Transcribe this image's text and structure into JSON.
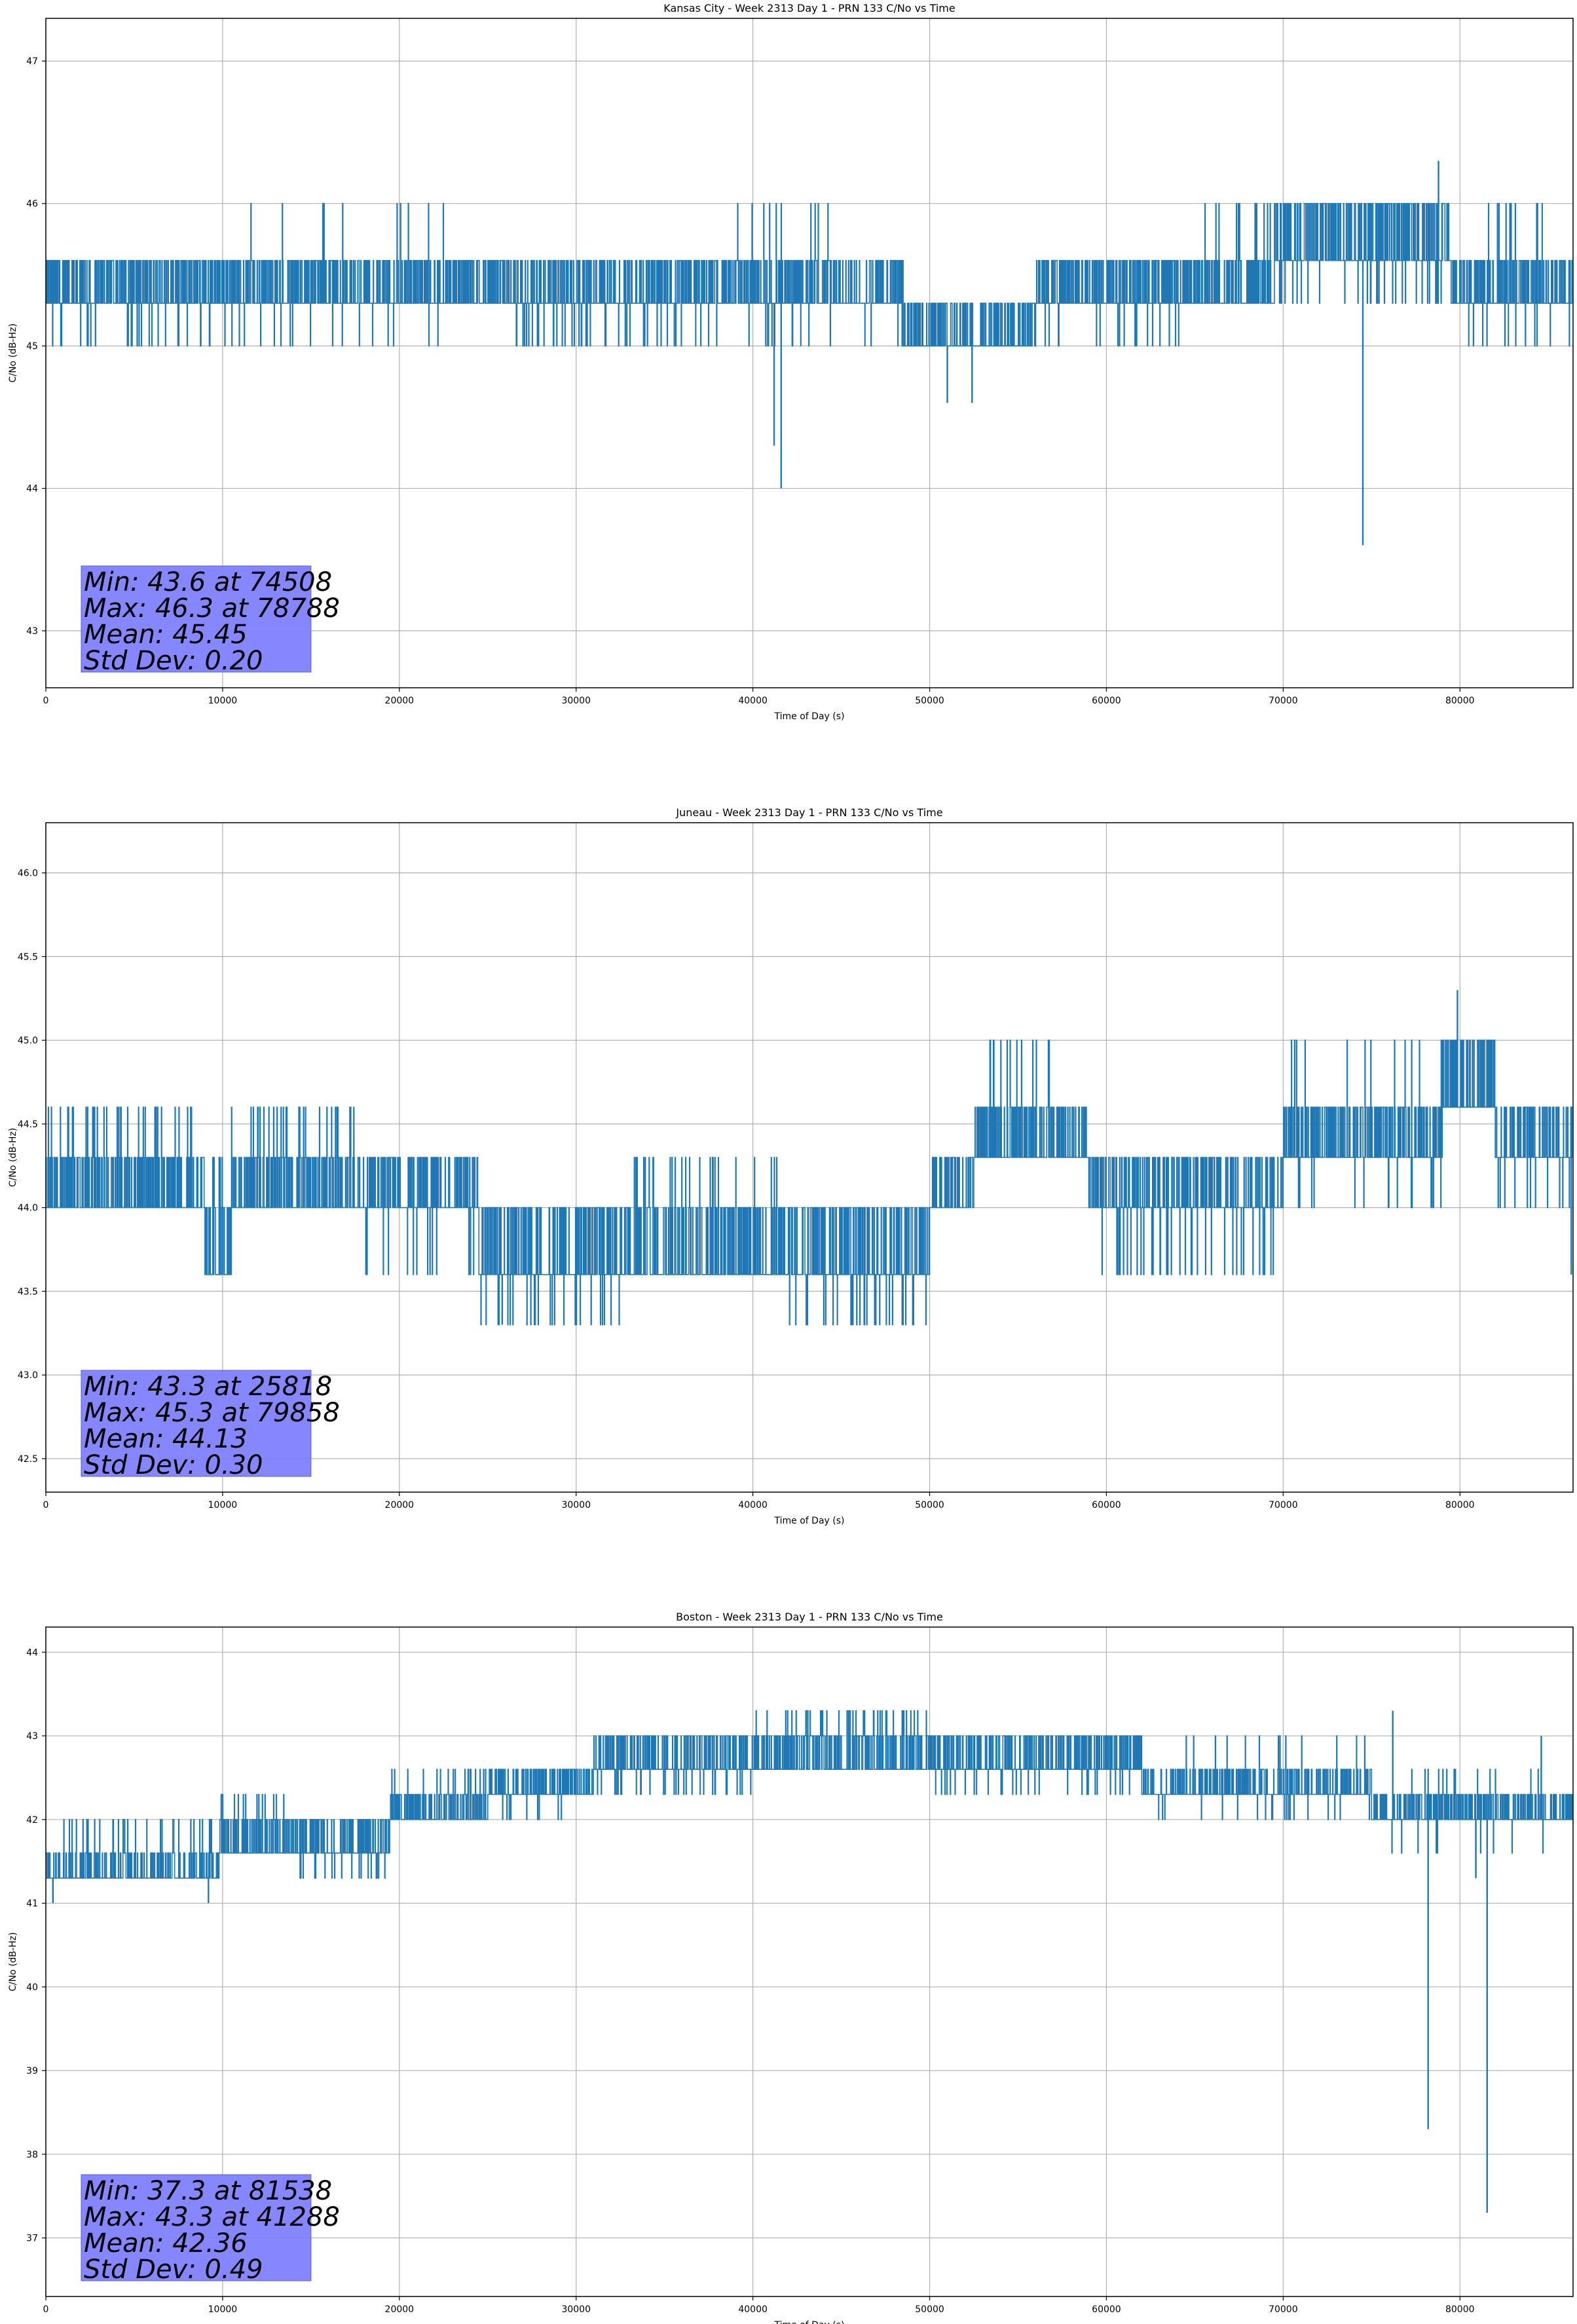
{
  "colors": {
    "line": "#1f77b4",
    "grid": "#b0b0b0",
    "stats_box": "#8080ff"
  },
  "chart_data": [
    {
      "type": "line",
      "title": "Kansas City - Week 2313 Day 1 - PRN 133 C/No vs Time",
      "xlabel": "Time of Day (s)",
      "ylabel": "C/No (dB-Hz)",
      "xlim": [
        0,
        86400
      ],
      "ylim": [
        42.6,
        47.3
      ],
      "xticks": [
        0,
        10000,
        20000,
        30000,
        40000,
        50000,
        60000,
        70000,
        80000
      ],
      "yticks": [
        43,
        44,
        45,
        46,
        47
      ],
      "grid": true,
      "stats": [
        "Min: 43.6 at 74508",
        "Max: 46.3 at 78788",
        "Mean: 45.45",
        "Std Dev: 0.20"
      ],
      "segments": [
        {
          "start": 0,
          "end": 5200,
          "levels": [
            45.3,
            45.6,
            45.0
          ]
        },
        {
          "start": 5200,
          "end": 11200,
          "levels": [
            45.3,
            45.6,
            45.0
          ]
        },
        {
          "start": 11200,
          "end": 22500,
          "levels": [
            45.3,
            45.6,
            46.0,
            45.0
          ]
        },
        {
          "start": 22500,
          "end": 26500,
          "levels": [
            45.3,
            45.6
          ]
        },
        {
          "start": 26500,
          "end": 39000,
          "levels": [
            45.3,
            45.6,
            45.0
          ]
        },
        {
          "start": 39000,
          "end": 46000,
          "levels": [
            45.3,
            45.6,
            46.0,
            45.0
          ]
        },
        {
          "start": 46000,
          "end": 48500,
          "levels": [
            45.3,
            45.6,
            45.0
          ]
        },
        {
          "start": 48500,
          "end": 56000,
          "levels": [
            45.0,
            45.3
          ]
        },
        {
          "start": 56000,
          "end": 65000,
          "levels": [
            45.3,
            45.6,
            45.0
          ]
        },
        {
          "start": 65000,
          "end": 69500,
          "levels": [
            45.3,
            45.6,
            46.0
          ]
        },
        {
          "start": 69500,
          "end": 79500,
          "levels": [
            45.6,
            46.0,
            45.3
          ]
        },
        {
          "start": 79500,
          "end": 86400,
          "levels": [
            45.3,
            45.6,
            46.0,
            45.0
          ]
        }
      ],
      "spikes": [
        [
          41200,
          44.3
        ],
        [
          41600,
          44.0
        ],
        [
          51000,
          44.6
        ],
        [
          52400,
          44.6
        ],
        [
          74508,
          43.6
        ],
        [
          78788,
          46.3
        ]
      ]
    },
    {
      "type": "line",
      "title": "Juneau - Week 2313 Day 1 - PRN 133 C/No vs Time",
      "xlabel": "Time of Day (s)",
      "ylabel": "C/No (dB-Hz)",
      "xlim": [
        0,
        86400
      ],
      "ylim": [
        42.3,
        46.3
      ],
      "xticks": [
        0,
        10000,
        20000,
        30000,
        40000,
        50000,
        60000,
        70000,
        80000
      ],
      "yticks": [
        42.5,
        43.0,
        43.5,
        44.0,
        44.5,
        45.0,
        45.5,
        46.0
      ],
      "grid": true,
      "stats": [
        "Min: 43.3 at 25818",
        "Max: 45.3 at 79858",
        "Mean: 44.13",
        "Std Dev: 0.30"
      ],
      "segments": [
        {
          "start": 0,
          "end": 9000,
          "levels": [
            44.0,
            44.3,
            44.6
          ]
        },
        {
          "start": 9000,
          "end": 10500,
          "levels": [
            43.6,
            44.0,
            44.3
          ]
        },
        {
          "start": 10500,
          "end": 17500,
          "levels": [
            44.0,
            44.3,
            44.6
          ]
        },
        {
          "start": 17500,
          "end": 24500,
          "levels": [
            44.0,
            44.3,
            43.6
          ]
        },
        {
          "start": 24500,
          "end": 33000,
          "levels": [
            43.6,
            44.0,
            43.3
          ]
        },
        {
          "start": 33000,
          "end": 42000,
          "levels": [
            43.6,
            44.0,
            44.3
          ]
        },
        {
          "start": 42000,
          "end": 50000,
          "levels": [
            43.6,
            44.0,
            43.3
          ]
        },
        {
          "start": 50000,
          "end": 52500,
          "levels": [
            44.0,
            44.3
          ]
        },
        {
          "start": 52500,
          "end": 59000,
          "levels": [
            44.3,
            44.6,
            45.0
          ]
        },
        {
          "start": 59000,
          "end": 70000,
          "levels": [
            44.0,
            44.3,
            43.6
          ]
        },
        {
          "start": 70000,
          "end": 79000,
          "levels": [
            44.3,
            44.6,
            45.0,
            44.0
          ]
        },
        {
          "start": 79000,
          "end": 82000,
          "levels": [
            44.6,
            45.0
          ]
        },
        {
          "start": 82000,
          "end": 86400,
          "levels": [
            44.3,
            44.6,
            44.0
          ]
        }
      ],
      "spikes": [
        [
          25818,
          43.3
        ],
        [
          79858,
          45.3
        ],
        [
          86300,
          43.6
        ]
      ]
    },
    {
      "type": "line",
      "title": "Boston - Week 2313 Day 1 - PRN 133 C/No vs Time",
      "xlabel": "Time of Day (s)",
      "ylabel": "C/No (dB-Hz)",
      "xlim": [
        0,
        86400
      ],
      "ylim": [
        36.3,
        44.3
      ],
      "xticks": [
        0,
        10000,
        20000,
        30000,
        40000,
        50000,
        60000,
        70000,
        80000
      ],
      "yticks": [
        37,
        38,
        39,
        40,
        41,
        42,
        43,
        44
      ],
      "grid": true,
      "stats": [
        "Min: 37.3 at 81538",
        "Max: 43.3 at 41288",
        "Mean: 42.36",
        "Std Dev: 0.49"
      ],
      "segments": [
        {
          "start": 0,
          "end": 9800,
          "levels": [
            41.3,
            41.6,
            42.0
          ]
        },
        {
          "start": 9800,
          "end": 14000,
          "levels": [
            41.6,
            42.0,
            42.3
          ]
        },
        {
          "start": 14000,
          "end": 19500,
          "levels": [
            41.6,
            42.0,
            41.3
          ]
        },
        {
          "start": 19500,
          "end": 25000,
          "levels": [
            42.0,
            42.3,
            42.6
          ]
        },
        {
          "start": 25000,
          "end": 31000,
          "levels": [
            42.3,
            42.6,
            42.0
          ]
        },
        {
          "start": 31000,
          "end": 40000,
          "levels": [
            42.6,
            43.0,
            42.3
          ]
        },
        {
          "start": 40000,
          "end": 50000,
          "levels": [
            42.6,
            43.0,
            43.3
          ]
        },
        {
          "start": 50000,
          "end": 62000,
          "levels": [
            42.6,
            43.0,
            42.3
          ]
        },
        {
          "start": 62000,
          "end": 75000,
          "levels": [
            42.3,
            42.6,
            43.0,
            42.0
          ]
        },
        {
          "start": 75000,
          "end": 86400,
          "levels": [
            42.0,
            42.3,
            42.6,
            41.6
          ]
        }
      ],
      "spikes": [
        [
          400,
          41.0
        ],
        [
          9200,
          41.0
        ],
        [
          76200,
          43.3
        ],
        [
          78200,
          38.3
        ],
        [
          81538,
          37.3
        ],
        [
          80900,
          41.3
        ],
        [
          84600,
          43.0
        ]
      ]
    }
  ]
}
